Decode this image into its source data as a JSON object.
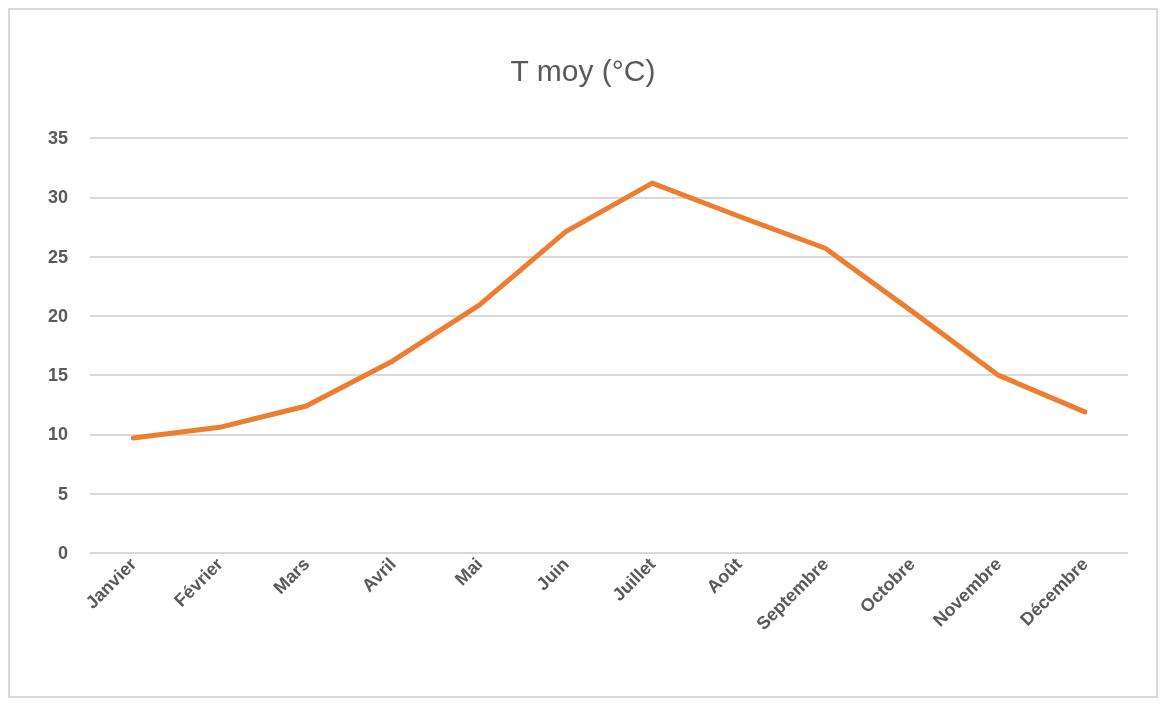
{
  "chart_data": {
    "type": "line",
    "title": "T moy (°C)",
    "categories": [
      "Janvier",
      "Février",
      "Mars",
      "Avril",
      "Mai",
      "Juin",
      "Juillet",
      "Août",
      "Septembre",
      "Octobre",
      "Novembre",
      "Décembre"
    ],
    "series": [
      {
        "color": "#ed7d31",
        "values": [
          9.7,
          10.6,
          12.4,
          16.2,
          20.9,
          27.1,
          31.2,
          28.4,
          25.7,
          20.4,
          15.0,
          11.9
        ]
      }
    ],
    "ylim": [
      0,
      35
    ],
    "yticks": [
      0,
      5,
      10,
      15,
      20,
      25,
      30,
      35
    ],
    "grid": "y",
    "marker": "none",
    "line_style": "solid"
  }
}
